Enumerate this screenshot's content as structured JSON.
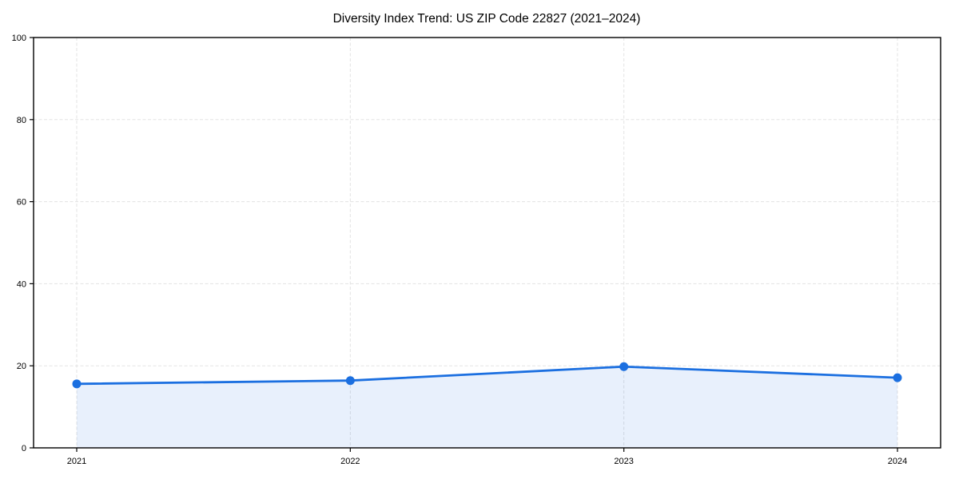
{
  "chart_data": {
    "type": "area",
    "title": "Diversity Index Trend: US ZIP Code 22827 (2021–2024)",
    "x": [
      "2021",
      "2022",
      "2023",
      "2024"
    ],
    "series": [
      {
        "name": "Diversity Index",
        "values": [
          15.6,
          16.4,
          19.8,
          17.1
        ]
      }
    ],
    "xlabel": "",
    "ylabel": "",
    "ylim": [
      0,
      100
    ],
    "yticks": [
      0,
      20,
      40,
      60,
      80,
      100
    ],
    "grid": "dashed",
    "legend": "none",
    "colors": {
      "line": "#1b6fe0",
      "marker": "#1b6fe0",
      "fill_opacity": 0.1,
      "grid": "#e3e3e3",
      "axis": "#000000",
      "text": "#000000",
      "background": "#ffffff"
    }
  }
}
